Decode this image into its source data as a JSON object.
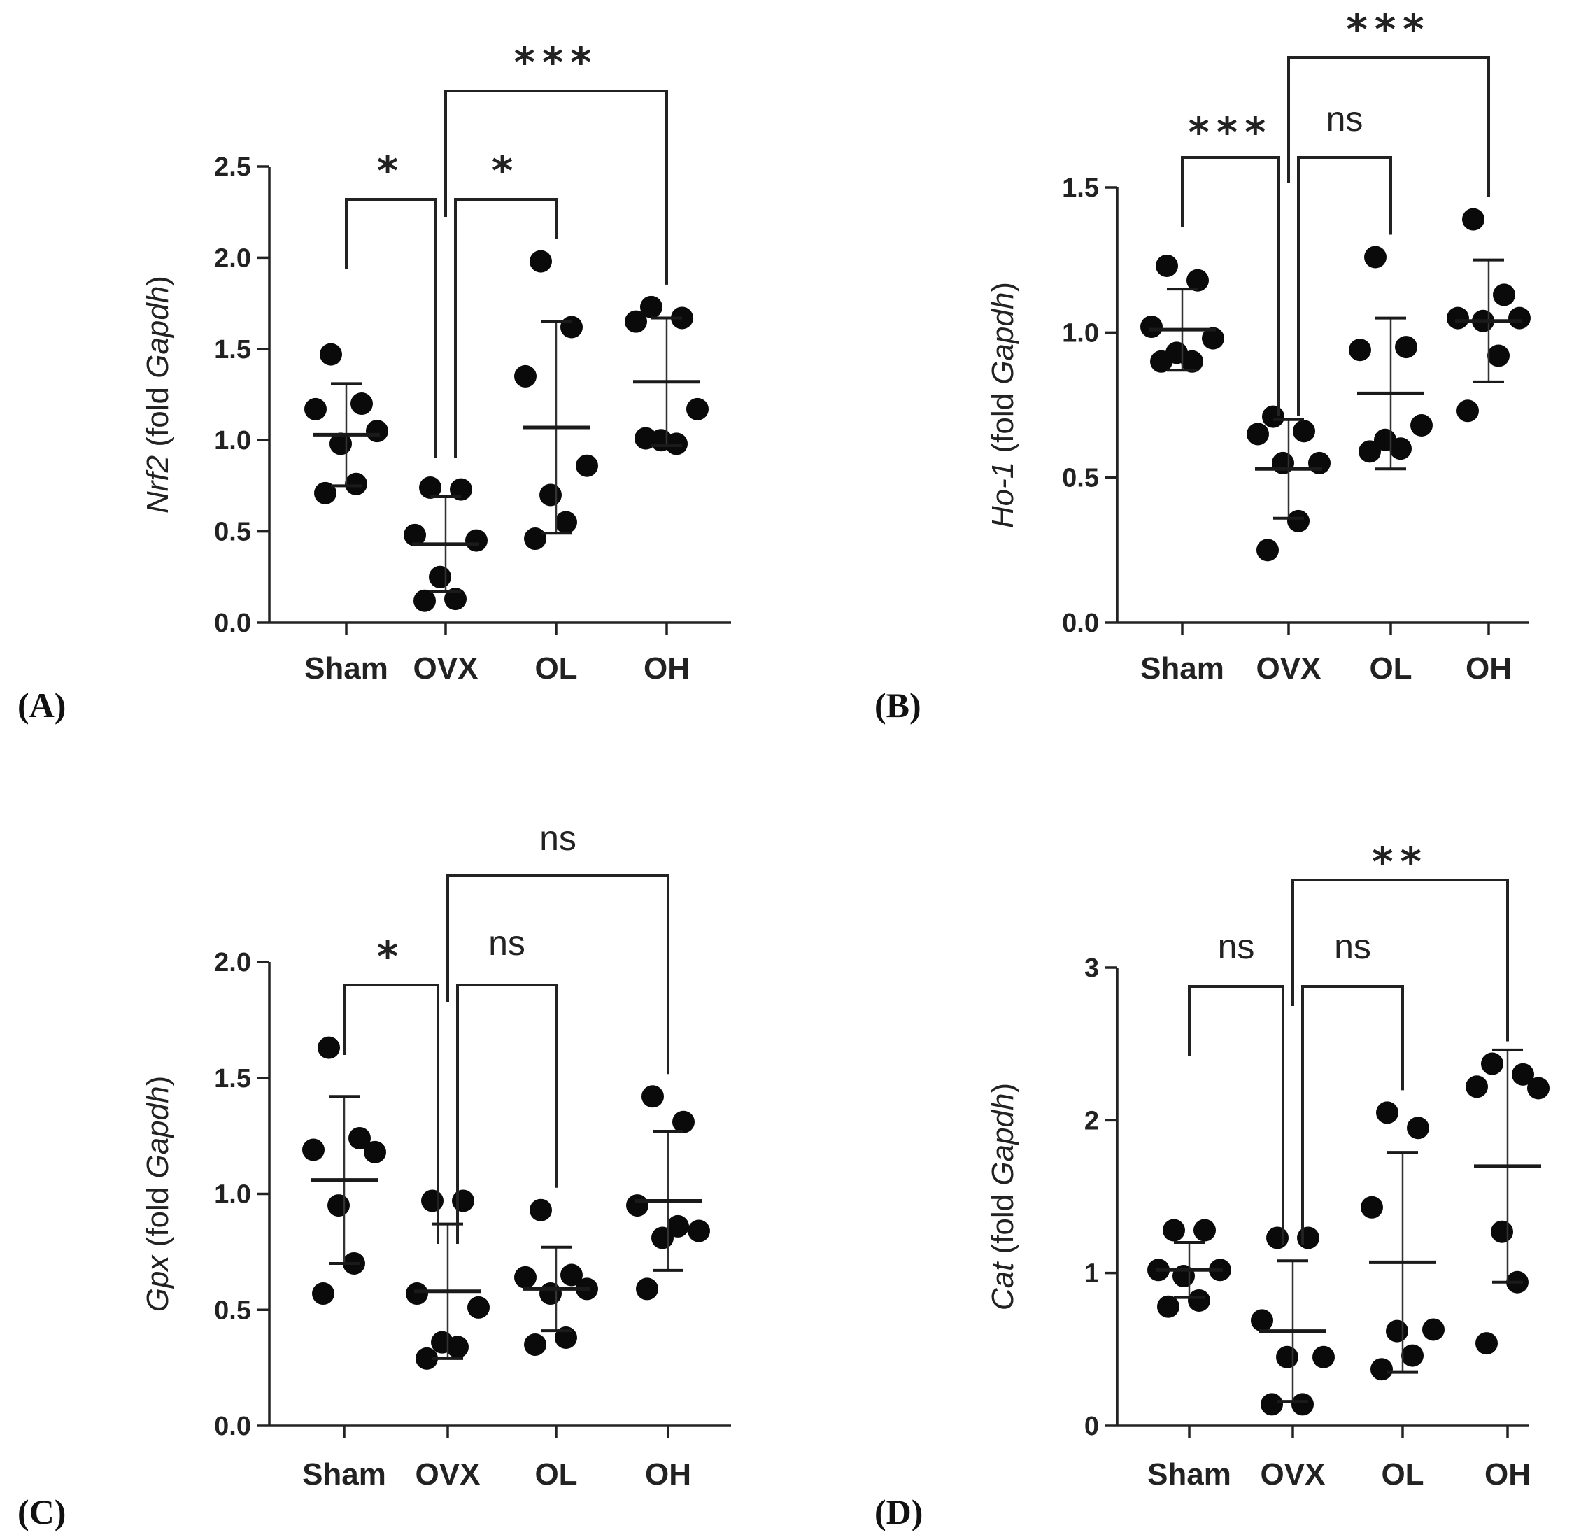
{
  "chart_data": [
    {
      "type": "scatter",
      "panel_label": "(A)",
      "ylabel_gene": "Nrf2",
      "ylabel_pre": " (fold ",
      "ylabel_ref": "Gapdh",
      "ylabel_post": ")",
      "categories": [
        "Sham",
        "OVX",
        "OL",
        "OH"
      ],
      "ylim": [
        0,
        2.5
      ],
      "yticks": [
        0.0,
        0.5,
        1.0,
        1.5,
        2.0,
        2.5
      ],
      "ytick_labels": [
        "0.0",
        "0.5",
        "1.0",
        "1.5",
        "2.0",
        "2.5"
      ],
      "points": [
        [
          1.47,
          1.2,
          1.17,
          1.05,
          0.98,
          0.76,
          0.71
        ],
        [
          0.74,
          0.73,
          0.48,
          0.45,
          0.25,
          0.13,
          0.12
        ],
        [
          1.98,
          1.62,
          1.35,
          0.86,
          0.7,
          0.55,
          0.46
        ],
        [
          1.73,
          1.67,
          1.65,
          1.17,
          1.0,
          0.98,
          1.01
        ]
      ],
      "mean": [
        1.03,
        0.43,
        1.07,
        1.32
      ],
      "sd": [
        0.28,
        0.26,
        0.58,
        0.35
      ],
      "comparisons": [
        {
          "from": 0,
          "to": 1,
          "label": "*"
        },
        {
          "from": 1,
          "to": 2,
          "label": "*"
        },
        {
          "from": 1,
          "to": 3,
          "label": "***"
        }
      ]
    },
    {
      "type": "scatter",
      "panel_label": "(B)",
      "ylabel_gene": "Ho-1",
      "ylabel_pre": " (fold ",
      "ylabel_ref": "Gapdh",
      "ylabel_post": ")",
      "categories": [
        "Sham",
        "OVX",
        "OL",
        "OH"
      ],
      "ylim": [
        0,
        1.5
      ],
      "yticks": [
        0.0,
        0.5,
        1.0,
        1.5
      ],
      "ytick_labels": [
        "0.0",
        "0.5",
        "1.0",
        "1.5"
      ],
      "points": [
        [
          1.23,
          1.18,
          1.02,
          0.98,
          0.93,
          0.9,
          0.9
        ],
        [
          0.71,
          0.66,
          0.65,
          0.55,
          0.55,
          0.35,
          0.25
        ],
        [
          1.26,
          0.95,
          0.94,
          0.68,
          0.63,
          0.6,
          0.59
        ],
        [
          1.39,
          1.13,
          1.05,
          1.05,
          1.04,
          0.92,
          0.73
        ]
      ],
      "mean": [
        1.01,
        0.53,
        0.79,
        1.04
      ],
      "sd": [
        0.14,
        0.17,
        0.26,
        0.21
      ],
      "comparisons": [
        {
          "from": 0,
          "to": 1,
          "label": "***"
        },
        {
          "from": 1,
          "to": 2,
          "label": "ns"
        },
        {
          "from": 1,
          "to": 3,
          "label": "***"
        }
      ]
    },
    {
      "type": "scatter",
      "panel_label": "(C)",
      "ylabel_gene": "Gpx",
      "ylabel_pre": " (fold ",
      "ylabel_ref": "Gapdh",
      "ylabel_post": ")",
      "categories": [
        "Sham",
        "OVX",
        "OL",
        "OH"
      ],
      "ylim": [
        0,
        2.0
      ],
      "yticks": [
        0.0,
        0.5,
        1.0,
        1.5,
        2.0
      ],
      "ytick_labels": [
        "0.0",
        "0.5",
        "1.0",
        "1.5",
        "2.0"
      ],
      "points": [
        [
          1.63,
          1.24,
          1.19,
          1.18,
          0.95,
          0.7,
          0.57
        ],
        [
          0.97,
          0.97,
          0.57,
          0.51,
          0.36,
          0.34,
          0.29
        ],
        [
          0.93,
          0.65,
          0.64,
          0.59,
          0.57,
          0.38,
          0.35
        ],
        [
          1.42,
          1.31,
          0.95,
          0.84,
          0.81,
          0.86,
          0.59
        ]
      ],
      "mean": [
        1.06,
        0.58,
        0.59,
        0.97
      ],
      "sd": [
        0.36,
        0.29,
        0.18,
        0.3
      ],
      "comparisons": [
        {
          "from": 0,
          "to": 1,
          "label": "*"
        },
        {
          "from": 1,
          "to": 2,
          "label": "ns"
        },
        {
          "from": 1,
          "to": 3,
          "label": "ns"
        }
      ]
    },
    {
      "type": "scatter",
      "panel_label": "(D)",
      "ylabel_gene": "Cat",
      "ylabel_pre": " (fold ",
      "ylabel_ref": "Gapdh",
      "ylabel_post": ")",
      "categories": [
        "Sham",
        "OVX",
        "OL",
        "OH"
      ],
      "ylim": [
        0,
        3
      ],
      "yticks": [
        0,
        1,
        2,
        3
      ],
      "ytick_labels": [
        "0",
        "1",
        "2",
        "3"
      ],
      "points": [
        [
          1.28,
          1.28,
          1.02,
          1.02,
          0.98,
          0.82,
          0.78
        ],
        [
          1.23,
          1.23,
          0.69,
          0.45,
          0.45,
          0.14,
          0.14
        ],
        [
          2.05,
          1.95,
          1.43,
          0.63,
          0.62,
          0.46,
          0.37
        ],
        [
          2.37,
          2.3,
          2.22,
          2.21,
          1.27,
          0.94,
          0.54
        ]
      ],
      "mean": [
        1.02,
        0.62,
        1.07,
        1.7
      ],
      "sd": [
        0.18,
        0.46,
        0.72,
        0.76
      ],
      "comparisons": [
        {
          "from": 0,
          "to": 1,
          "label": "ns"
        },
        {
          "from": 1,
          "to": 2,
          "label": "ns"
        },
        {
          "from": 1,
          "to": 3,
          "label": "**"
        }
      ]
    }
  ]
}
